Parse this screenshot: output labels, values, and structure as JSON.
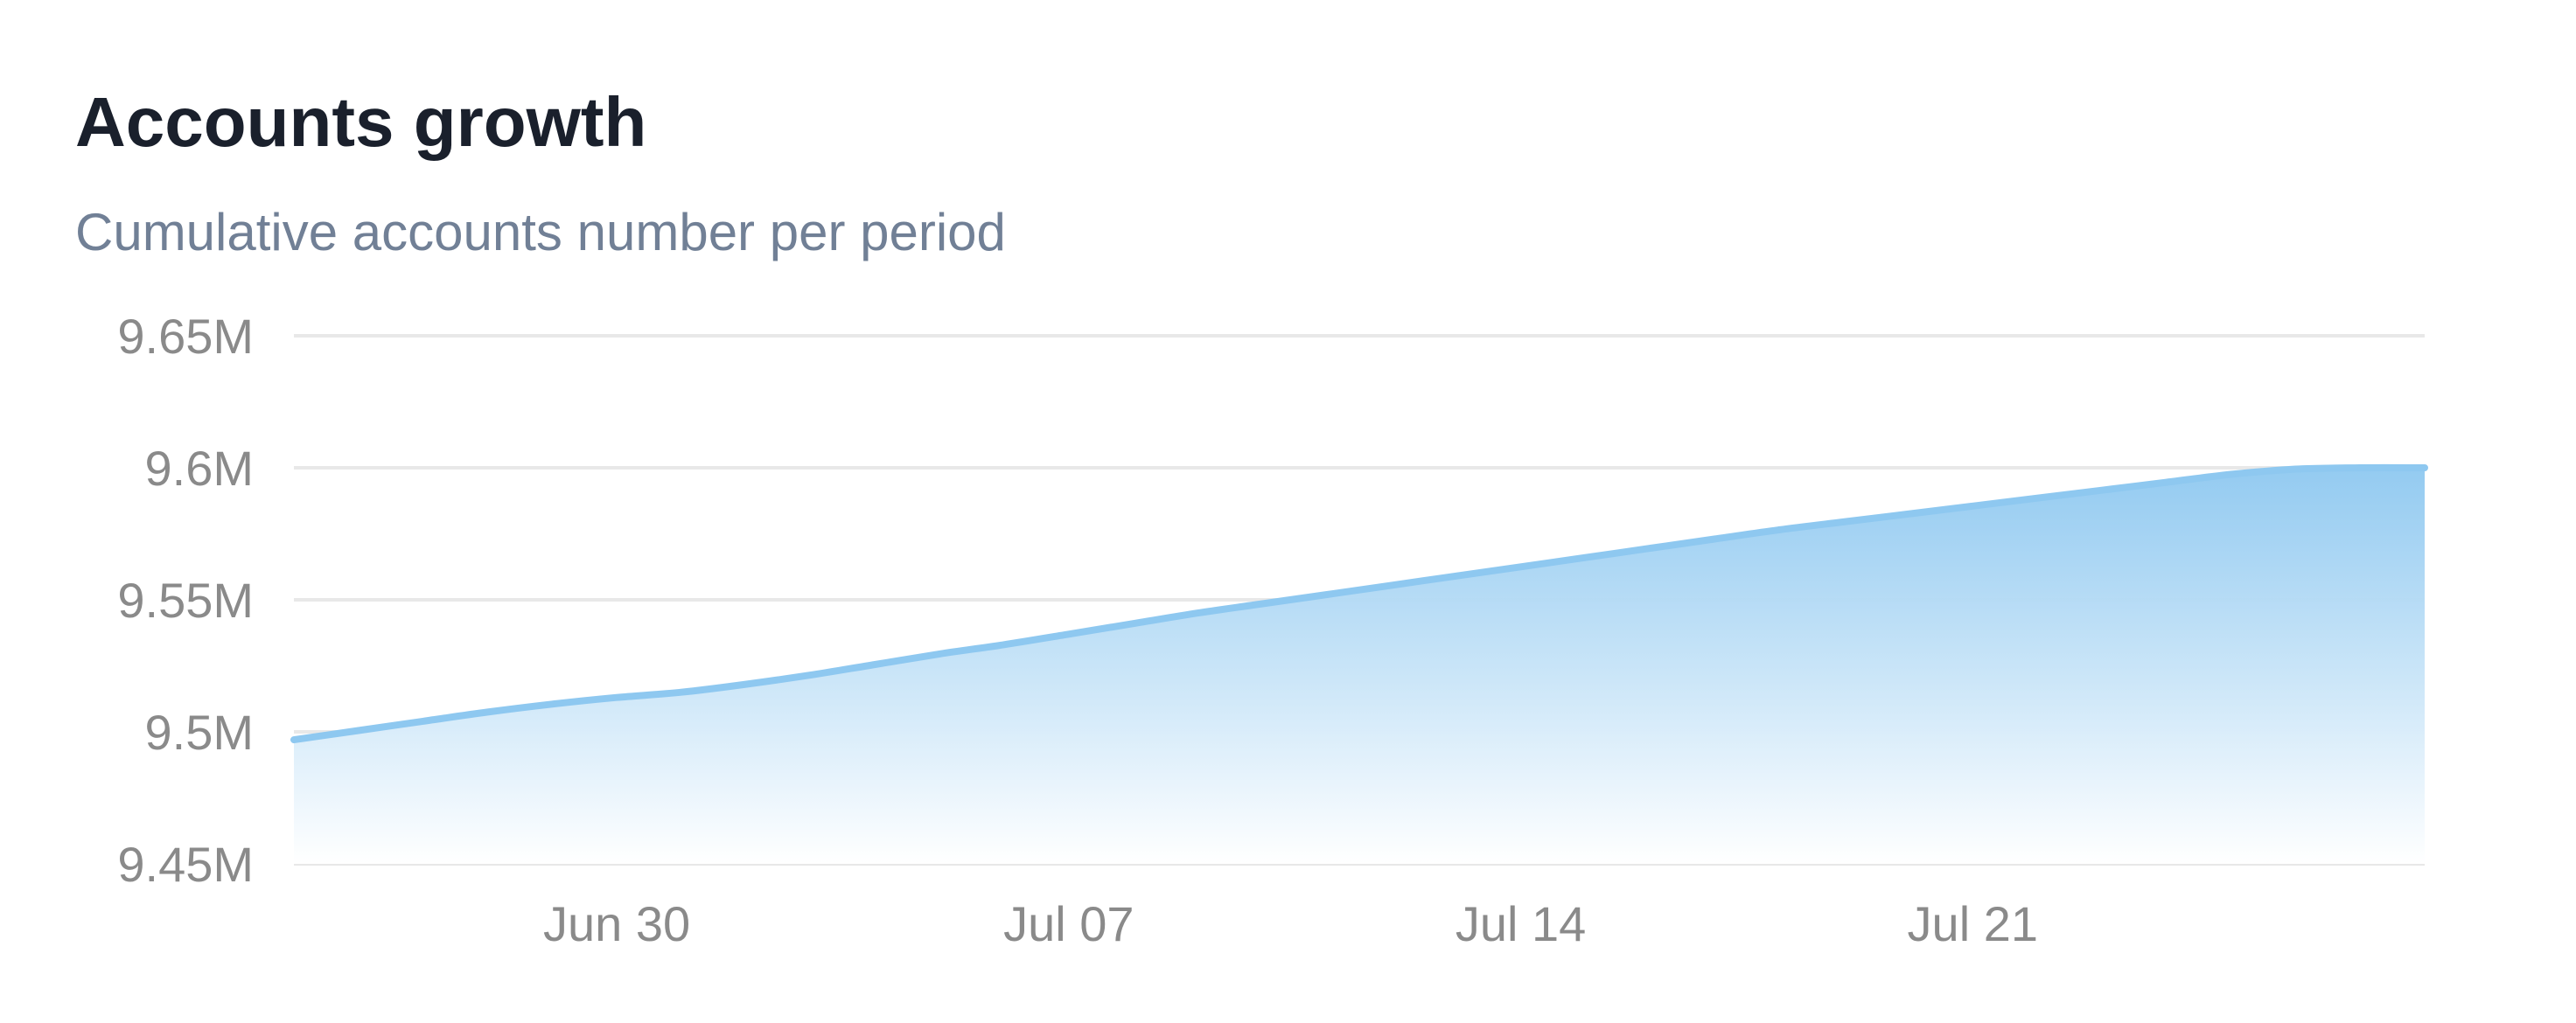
{
  "header": {
    "title": "Accounts growth",
    "subtitle": "Cumulative accounts number per period"
  },
  "colors": {
    "line": "#8ec8f0",
    "area_top": "#8ec8f0",
    "area_bottom": "#ffffff",
    "grid": "#e8e8e8",
    "tick_label": "#8a8a8a",
    "title": "#1a202c",
    "subtitle": "#718096"
  },
  "chart_data": {
    "type": "area",
    "title": "Accounts growth",
    "subtitle": "Cumulative accounts number per period",
    "xlabel": "",
    "ylabel": "",
    "x_range": [
      "2024-06-25",
      "2024-07-28"
    ],
    "ylim": [
      9450000,
      9650000
    ],
    "y_ticks": [
      9450000,
      9500000,
      9550000,
      9600000,
      9650000
    ],
    "y_tick_labels": [
      "9.45M",
      "9.5M",
      "9.55M",
      "9.6M",
      "9.65M"
    ],
    "x_ticks": [
      "2024-06-30",
      "2024-07-07",
      "2024-07-14",
      "2024-07-21"
    ],
    "x_tick_labels": [
      "Jun 30",
      "Jul 07",
      "Jul 14",
      "Jul 21"
    ],
    "grid": true,
    "legend": "none",
    "series": [
      {
        "x": [
          "2024-06-25",
          "2024-06-26",
          "2024-06-27",
          "2024-06-28",
          "2024-06-29",
          "2024-06-30",
          "2024-07-01",
          "2024-07-02",
          "2024-07-03",
          "2024-07-04",
          "2024-07-05",
          "2024-07-06",
          "2024-07-07",
          "2024-07-08",
          "2024-07-09",
          "2024-07-10",
          "2024-07-11",
          "2024-07-12",
          "2024-07-13",
          "2024-07-14",
          "2024-07-15",
          "2024-07-16",
          "2024-07-17",
          "2024-07-18",
          "2024-07-19",
          "2024-07-20",
          "2024-07-21",
          "2024-07-22",
          "2024-07-23",
          "2024-07-24",
          "2024-07-25",
          "2024-07-26",
          "2024-07-27",
          "2024-07-28"
        ],
        "values": [
          9497000,
          9500500,
          9504000,
          9507500,
          9510500,
          9513000,
          9515000,
          9518000,
          9521500,
          9525500,
          9529500,
          9533000,
          9537000,
          9541000,
          9545000,
          9548500,
          9552000,
          9555500,
          9559000,
          9562500,
          9566000,
          9569500,
          9573000,
          9576500,
          9579500,
          9582500,
          9585500,
          9588500,
          9591500,
          9594500,
          9597500,
          9599500,
          9600000,
          9600000
        ]
      }
    ]
  }
}
